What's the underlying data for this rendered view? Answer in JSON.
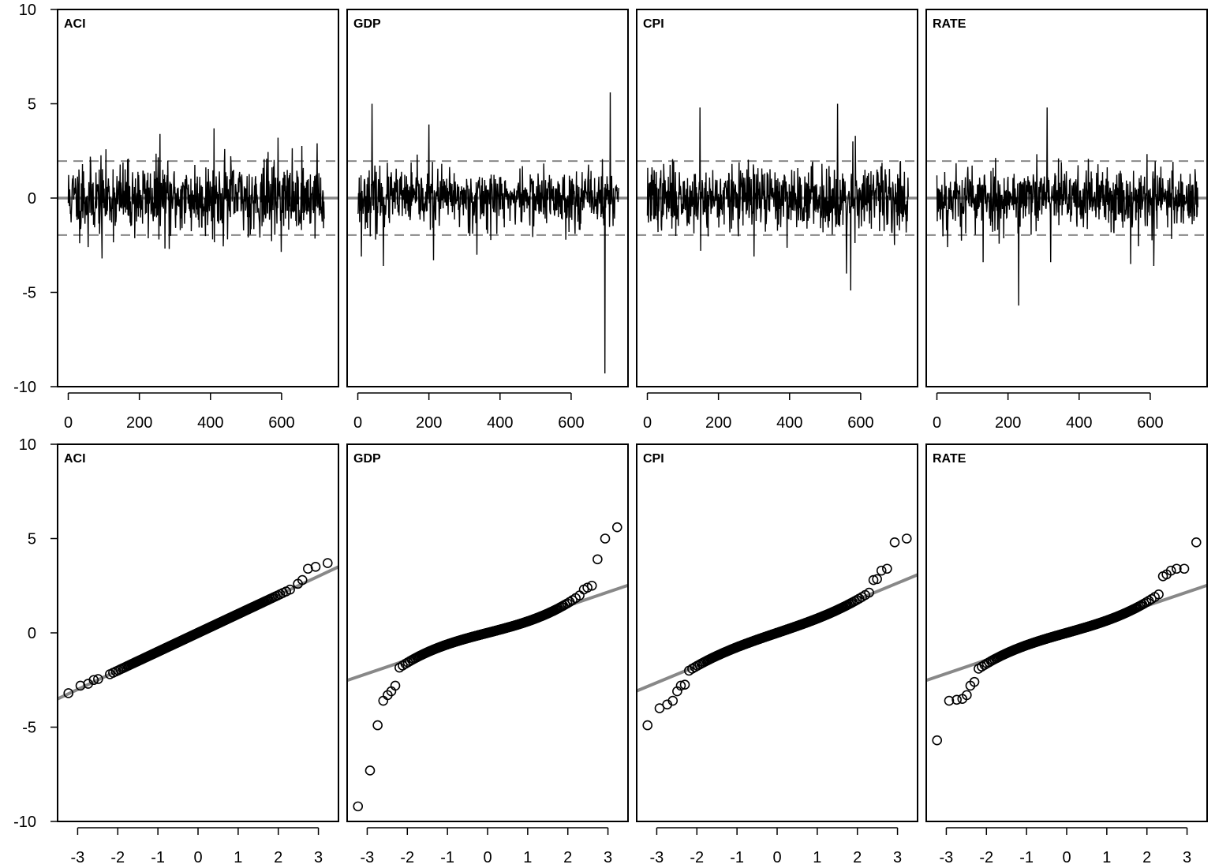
{
  "chart_data": [
    {
      "row": "top",
      "type": "line",
      "panels": [
        {
          "label": "ACI",
          "n": 721,
          "seed": 11,
          "sd": 0.95,
          "spikes": [
            [
              40,
              1.8
            ],
            [
              56,
              -2.6
            ],
            [
              95,
              -3.2
            ],
            [
              258,
              3.4
            ],
            [
              284,
              -2.7
            ],
            [
              410,
              3.7
            ],
            [
              440,
              2.6
            ],
            [
              590,
              3.2
            ],
            [
              700,
              2.9
            ],
            [
              718,
              -1.6
            ]
          ]
        },
        {
          "label": "GDP",
          "n": 735,
          "seed": 23,
          "sd": 0.75,
          "spikes": [
            [
              10,
              -3.1
            ],
            [
              40,
              5.0
            ],
            [
              50,
              -2.2
            ],
            [
              72,
              -3.6
            ],
            [
              200,
              3.9
            ],
            [
              213,
              -3.3
            ],
            [
              335,
              -3.0
            ],
            [
              695,
              -9.3
            ],
            [
              710,
              5.6
            ]
          ]
        },
        {
          "label": "CPI",
          "n": 735,
          "seed": 37,
          "sd": 0.85,
          "spikes": [
            [
              148,
              4.8
            ],
            [
              150,
              -2.8
            ],
            [
              300,
              -3.1
            ],
            [
              535,
              5.0
            ],
            [
              560,
              -4.0
            ],
            [
              572,
              -4.9
            ],
            [
              578,
              3.0
            ],
            [
              585,
              3.3
            ]
          ]
        },
        {
          "label": "RATE",
          "n": 735,
          "seed": 53,
          "sd": 0.85,
          "spikes": [
            [
              30,
              -2.6
            ],
            [
              130,
              -3.4
            ],
            [
              230,
              -5.7
            ],
            [
              310,
              4.8
            ],
            [
              320,
              -3.4
            ],
            [
              545,
              -3.5
            ],
            [
              610,
              -3.6
            ]
          ]
        }
      ],
      "bands": [
        -1.96,
        0,
        1.96
      ],
      "xlim": [
        -30,
        760
      ],
      "ylim": [
        -10,
        10
      ],
      "xticks": [
        0,
        200,
        400,
        600
      ],
      "yticks": [
        -10,
        -5,
        0,
        5,
        10
      ]
    },
    {
      "row": "bottom",
      "type": "scatter",
      "panels": [
        {
          "label": "ACI",
          "line": {
            "slope": 1.0,
            "intercept": 0.0
          },
          "ytail_low": [
            [
              -3.23,
              -3.2
            ],
            [
              -2.93,
              -2.8
            ],
            [
              -2.74,
              -2.7
            ],
            [
              -2.6,
              -2.5
            ],
            [
              -2.49,
              -2.45
            ]
          ],
          "ytail_high": [
            [
              2.49,
              2.6
            ],
            [
              2.6,
              2.8
            ],
            [
              2.74,
              3.4
            ],
            [
              2.93,
              3.5
            ],
            [
              3.23,
              3.7
            ]
          ],
          "core_slope": 1.0,
          "core_curv": 0.0
        },
        {
          "label": "GDP",
          "line": {
            "slope": 0.72,
            "intercept": 0.0
          },
          "ytail_low": [
            [
              -3.23,
              -9.2
            ],
            [
              -2.93,
              -7.3
            ],
            [
              -2.74,
              -4.9
            ],
            [
              -2.6,
              -3.6
            ],
            [
              -2.49,
              -3.3
            ],
            [
              -2.4,
              -3.1
            ],
            [
              -2.3,
              -2.8
            ]
          ],
          "ytail_high": [
            [
              2.4,
              2.3
            ],
            [
              2.49,
              2.4
            ],
            [
              2.6,
              2.5
            ],
            [
              2.74,
              3.9
            ],
            [
              2.93,
              5.0
            ],
            [
              3.23,
              5.6
            ]
          ],
          "core_slope": 0.55,
          "core_curv": 0.06
        },
        {
          "label": "CPI",
          "line": {
            "slope": 0.88,
            "intercept": 0.0
          },
          "ytail_low": [
            [
              -3.23,
              -4.9
            ],
            [
              -2.93,
              -4.0
            ],
            [
              -2.74,
              -3.8
            ],
            [
              -2.6,
              -3.6
            ],
            [
              -2.49,
              -3.1
            ],
            [
              -2.4,
              -2.8
            ],
            [
              -2.3,
              -2.75
            ]
          ],
          "ytail_high": [
            [
              2.4,
              2.8
            ],
            [
              2.49,
              2.85
            ],
            [
              2.6,
              3.3
            ],
            [
              2.74,
              3.4
            ],
            [
              2.93,
              4.8
            ],
            [
              3.23,
              5.0
            ]
          ],
          "core_slope": 0.72,
          "core_curv": 0.04
        },
        {
          "label": "RATE",
          "line": {
            "slope": 0.72,
            "intercept": 0.0
          },
          "ytail_low": [
            [
              -3.23,
              -5.7
            ],
            [
              -2.93,
              -3.6
            ],
            [
              -2.74,
              -3.55
            ],
            [
              -2.6,
              -3.5
            ],
            [
              -2.49,
              -3.3
            ],
            [
              -2.4,
              -2.8
            ],
            [
              -2.3,
              -2.6
            ]
          ],
          "ytail_high": [
            [
              2.4,
              3.0
            ],
            [
              2.49,
              3.1
            ],
            [
              2.6,
              3.3
            ],
            [
              2.74,
              3.4
            ],
            [
              2.93,
              3.4
            ],
            [
              3.23,
              4.8
            ]
          ],
          "core_slope": 0.6,
          "core_curv": 0.055
        }
      ],
      "n_points": 320,
      "xlim": [
        -3.5,
        3.5
      ],
      "ylim": [
        -10,
        10
      ],
      "xticks": [
        -3,
        -2,
        -1,
        0,
        1,
        2,
        3
      ],
      "yticks": [
        -10,
        -5,
        0,
        5,
        10
      ]
    }
  ]
}
